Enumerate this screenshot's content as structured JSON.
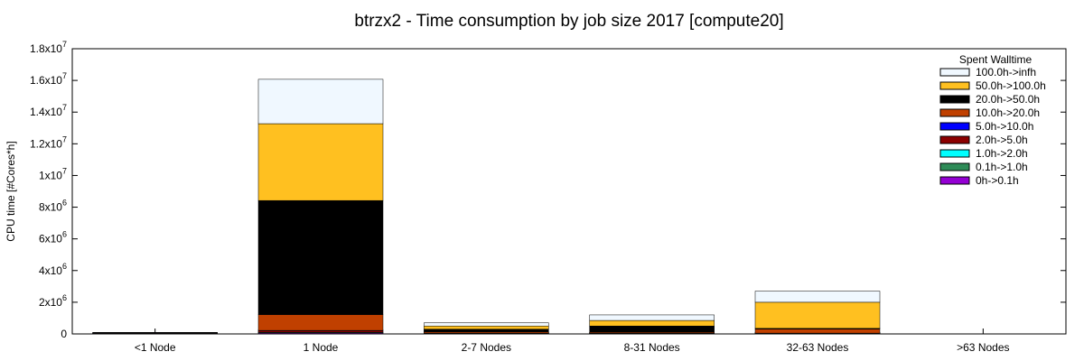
{
  "chart_data": {
    "type": "bar",
    "stacked": true,
    "title": "btrzx2 - Time consumption by job size 2017 [compute20]",
    "ylabel": "CPU time [#Cores*h]",
    "xlabel": "",
    "ylim": [
      0,
      18000000
    ],
    "y_ticks": [
      {
        "value": 0,
        "base": "0",
        "exp": ""
      },
      {
        "value": 2000000,
        "base": "2x10",
        "exp": "6"
      },
      {
        "value": 4000000,
        "base": "4x10",
        "exp": "6"
      },
      {
        "value": 6000000,
        "base": "6x10",
        "exp": "6"
      },
      {
        "value": 8000000,
        "base": "8x10",
        "exp": "6"
      },
      {
        "value": 10000000,
        "base": "1x10",
        "exp": "7"
      },
      {
        "value": 12000000,
        "base": "1.2x10",
        "exp": "7"
      },
      {
        "value": 14000000,
        "base": "1.4x10",
        "exp": "7"
      },
      {
        "value": 16000000,
        "base": "1.6x10",
        "exp": "7"
      },
      {
        "value": 18000000,
        "base": "1.8x10",
        "exp": "7"
      }
    ],
    "categories": [
      "<1 Node",
      "1 Node",
      "2-7 Nodes",
      "8-31 Nodes",
      "32-63 Nodes",
      ">63 Nodes"
    ],
    "legend": {
      "title": "Spent Walltime",
      "position": "top-right"
    },
    "grid": false,
    "series": [
      {
        "name": "0h->0.1h",
        "color": "#9400d3",
        "values": [
          5000,
          50000,
          5000,
          5000,
          5000,
          0
        ]
      },
      {
        "name": "0.1h->1.0h",
        "color": "#2e8b57",
        "values": [
          5000,
          30000,
          5000,
          5000,
          5000,
          0
        ]
      },
      {
        "name": "1.0h->2.0h",
        "color": "#00ffff",
        "values": [
          5000,
          20000,
          5000,
          5000,
          5000,
          0
        ]
      },
      {
        "name": "2.0h->5.0h",
        "color": "#8b0000",
        "values": [
          10000,
          100000,
          20000,
          20000,
          30000,
          0
        ]
      },
      {
        "name": "5.0h->10.0h",
        "color": "#0000ff",
        "values": [
          5000,
          20000,
          5000,
          5000,
          5000,
          0
        ]
      },
      {
        "name": "10.0h->20.0h",
        "color": "#c04000",
        "values": [
          10000,
          1000000,
          80000,
          60000,
          250000,
          0
        ]
      },
      {
        "name": "20.0h->50.0h",
        "color": "#000000",
        "values": [
          50000,
          7200000,
          180000,
          400000,
          50000,
          0
        ]
      },
      {
        "name": "50.0h->100.0h",
        "color": "#ffc020",
        "values": [
          0,
          4850000,
          200000,
          350000,
          1650000,
          0
        ]
      },
      {
        "name": "100.0h->infh",
        "color": "#f0f8ff",
        "values": [
          0,
          2800000,
          200000,
          350000,
          700000,
          0
        ]
      }
    ]
  }
}
